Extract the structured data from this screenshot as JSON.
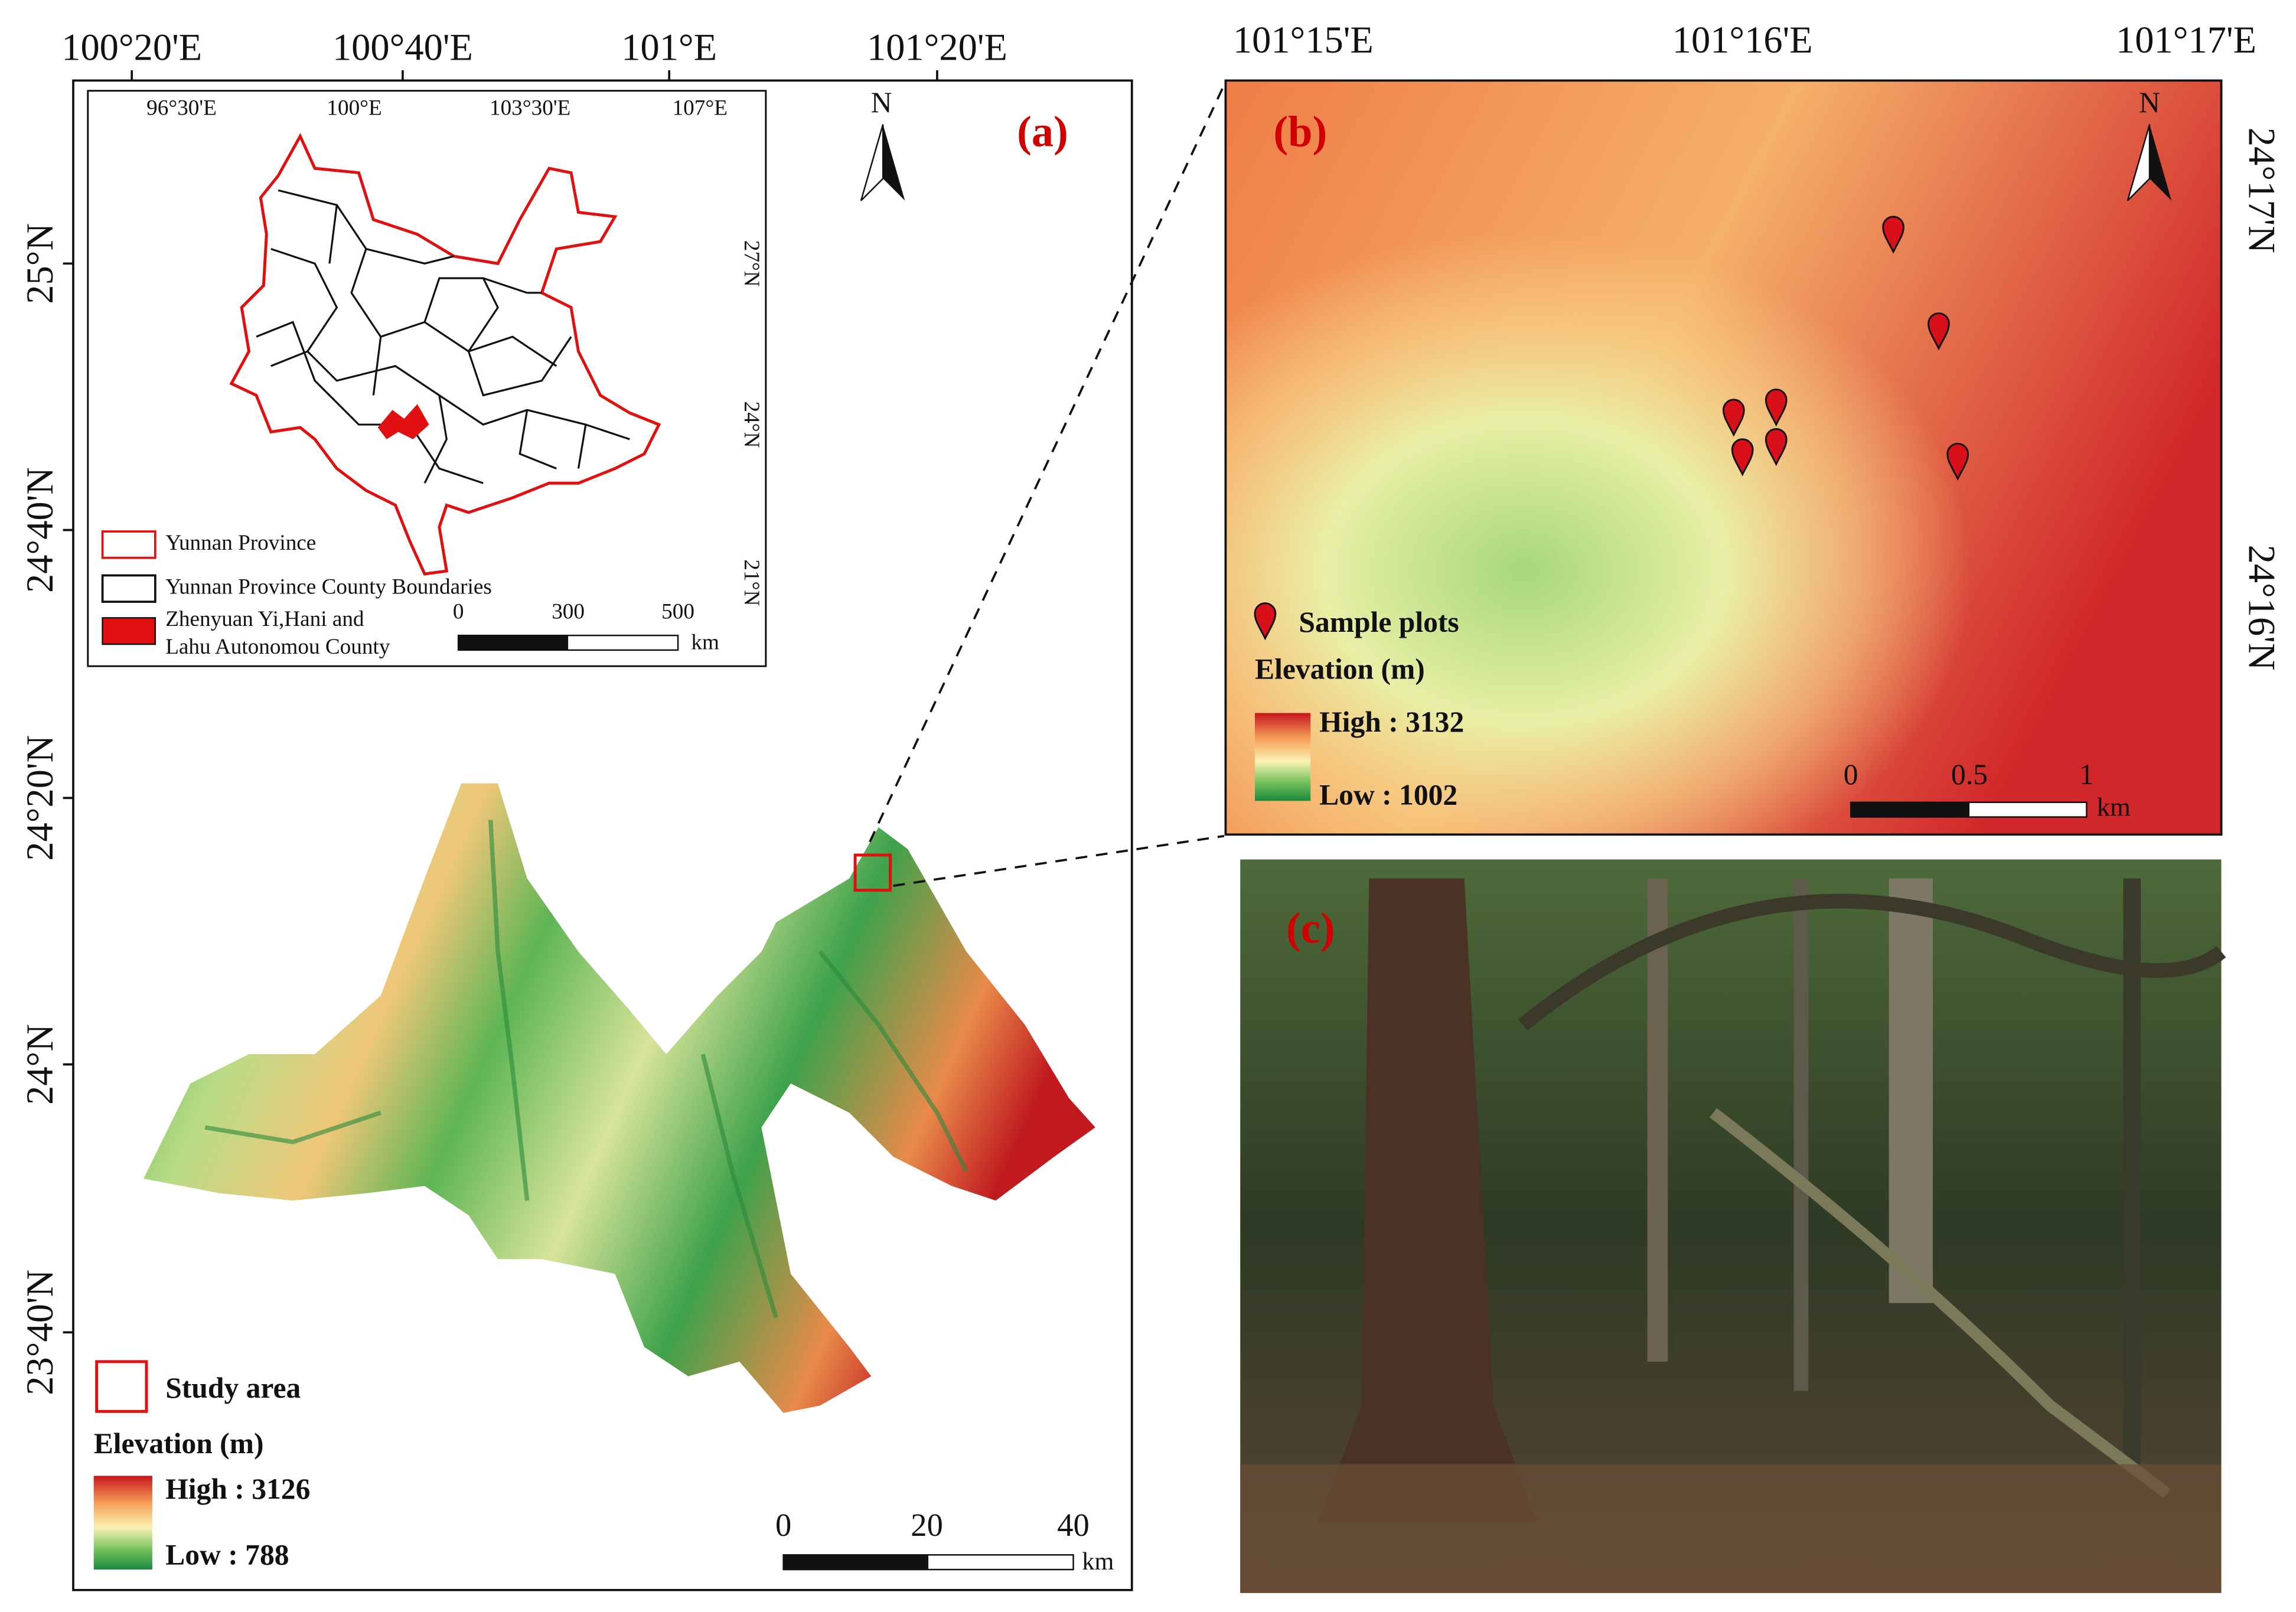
{
  "panel_a": {
    "label": "(a)",
    "north": "N",
    "top_ticks": [
      "100°20'E",
      "100°40'E",
      "101°E",
      "101°20'E"
    ],
    "left_ticks": [
      "25°N",
      "24°40'N",
      "24°20'N",
      "24°N",
      "23°40'N"
    ],
    "inset": {
      "top_ticks": [
        "96°30'E",
        "100°E",
        "103°30'E",
        "107°E"
      ],
      "right_ticks": [
        "27°N",
        "24°N",
        "21°N"
      ],
      "legend": {
        "province": "Yunnan Province",
        "counties": "Yunnan Province County Boundaries",
        "county_lines": [
          "Zhenyuan Yi,Hani and",
          "Lahu Autonomou County"
        ]
      },
      "scale": [
        "0",
        "300",
        "500"
      ],
      "scale_unit": "km"
    },
    "legend": {
      "study_area": "Study area",
      "elevation_title": "Elevation (m)",
      "high": "High : 3126",
      "low": "Low : 788"
    },
    "scale": [
      "0",
      "20",
      "40"
    ],
    "scale_unit": "km"
  },
  "panel_b": {
    "label": "(b)",
    "north": "N",
    "top_ticks": [
      "101°15'E",
      "101°16'E",
      "101°17'E"
    ],
    "right_ticks": [
      "24°17'N",
      "24°16'N"
    ],
    "legend": {
      "sample_plots": "Sample plots",
      "elevation_title": "Elevation (m)",
      "high": "High : 3132",
      "low": "Low : 1002"
    },
    "scale": [
      "0",
      "0.5",
      "1"
    ],
    "scale_unit": "km"
  },
  "panel_c": {
    "label": "(c)"
  }
}
